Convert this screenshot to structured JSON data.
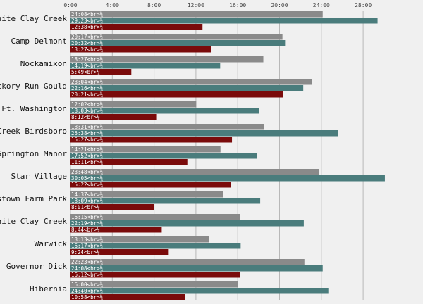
{
  "chart_data": {
    "type": "bar",
    "orientation": "horizontal",
    "x_unit": "minutes",
    "x_tick_labels": [
      "0:00",
      "4:00",
      "8:00",
      "12:00",
      "16:00",
      "20:00",
      "24:00",
      "28:00"
    ],
    "x_tick_values": [
      0,
      4,
      8,
      12,
      16,
      20,
      24,
      28
    ],
    "xlim": [
      0,
      31.5
    ],
    "grid": true,
    "label_suffix": "<br>¼",
    "colors": [
      "#8a8a8a",
      "#4a7c7c",
      "#7a0a0a"
    ],
    "categories": [
      "White Clay Creek",
      "Camp Delmont",
      "Nockamixon",
      "Hickory Run Gould",
      "Ft. Washington",
      "Creek Birdsboro",
      "Springton Manor",
      "Star Village",
      "Pottstown Farm Park",
      "White Clay Creek",
      "Warwick",
      "Governor Dick",
      "Hibernia"
    ],
    "series": [
      {
        "labels": [
          "24:08",
          "20:17",
          "18:27",
          "23:04",
          "12:02",
          "18:31",
          "14:21",
          "23:48",
          "14:37",
          "16:15",
          "13:13",
          "22:23",
          "16:00"
        ],
        "values": [
          24.13,
          20.28,
          18.45,
          23.07,
          12.03,
          18.52,
          14.35,
          23.8,
          14.62,
          16.25,
          13.22,
          22.38,
          16.0
        ]
      },
      {
        "labels": [
          "29:23",
          "20:32",
          "14:19",
          "22:16",
          "18:03",
          "25:38",
          "17:52",
          "30:05",
          "18:09",
          "22:19",
          "16:17",
          "24:08",
          "24:40"
        ],
        "values": [
          29.38,
          20.53,
          14.32,
          22.27,
          18.05,
          25.63,
          17.87,
          30.08,
          18.15,
          22.32,
          16.28,
          24.13,
          24.67
        ]
      },
      {
        "labels": [
          "12:38",
          "13:27",
          "5:49",
          "20:21",
          "8:12",
          "15:27",
          "11:11",
          "15:22",
          "8:01",
          "8:44",
          "9:24",
          "16:12",
          "10:58"
        ],
        "values": [
          12.63,
          13.45,
          5.82,
          20.35,
          8.2,
          15.45,
          11.18,
          15.37,
          8.02,
          8.73,
          9.4,
          16.2,
          10.97
        ]
      }
    ]
  }
}
